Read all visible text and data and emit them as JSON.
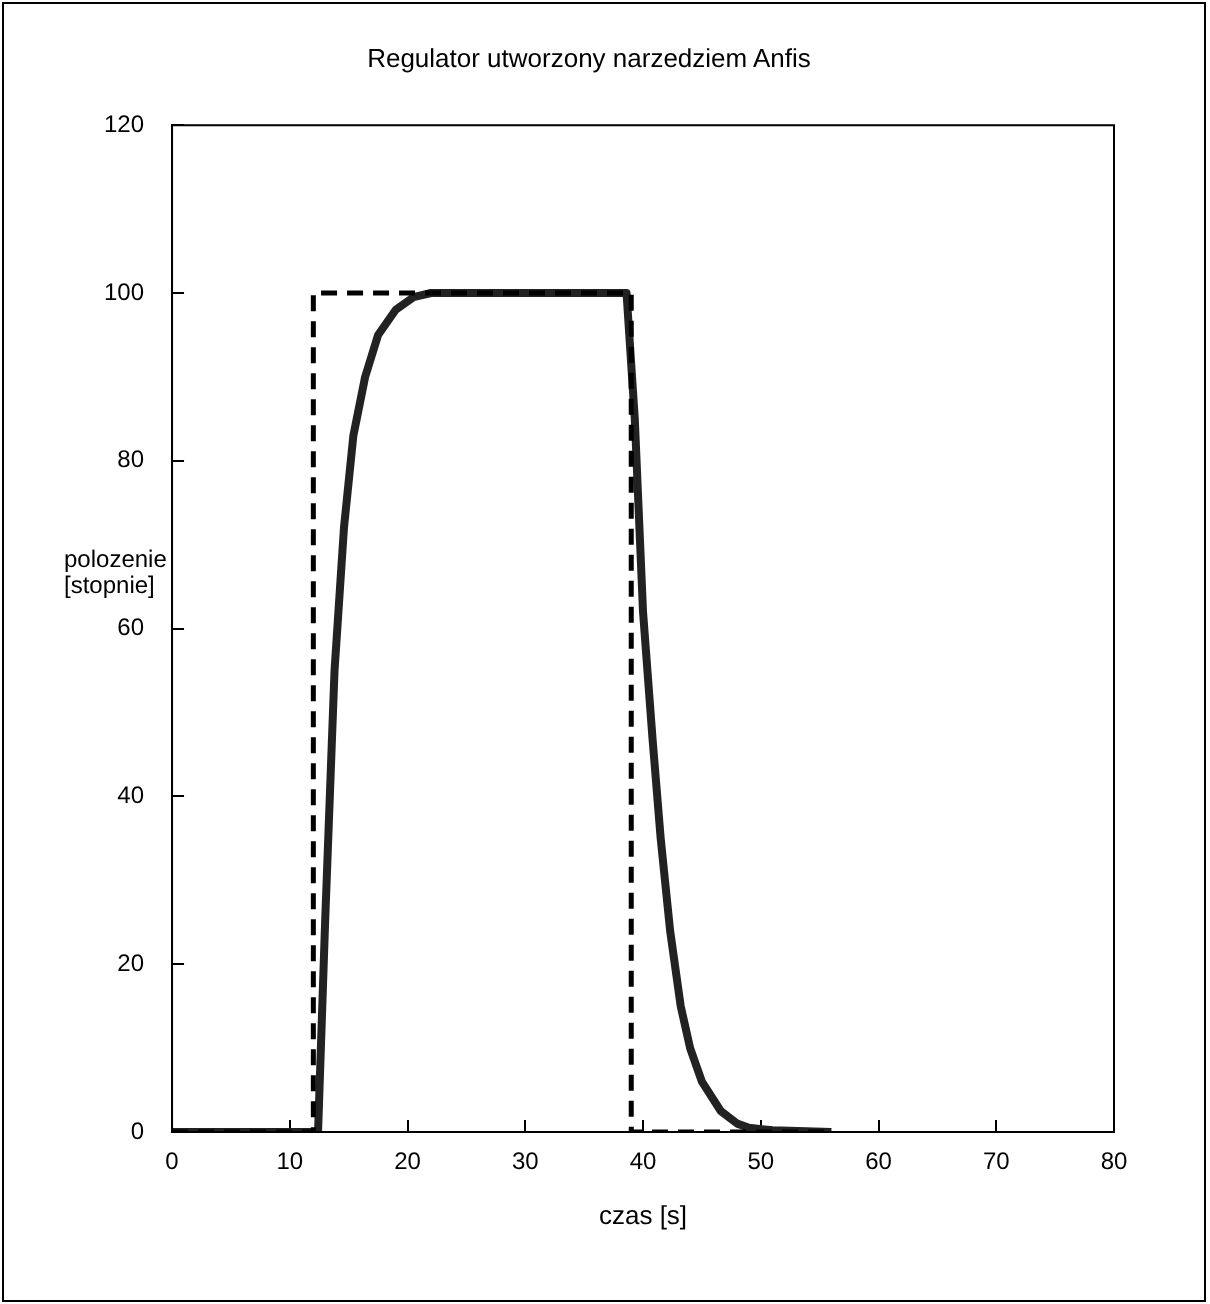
{
  "chart_data": {
    "type": "line",
    "title": "Regulator utworzony narzedziem Anfis",
    "xlabel": "czas [s]",
    "ylabel": "polozenie [stopnie]",
    "xlim": [
      0,
      80
    ],
    "xticks": [
      0,
      10,
      20,
      30,
      40,
      50,
      60,
      70,
      80
    ],
    "ylim": [
      0,
      120
    ],
    "yticks": [
      0,
      20,
      40,
      60,
      80,
      100,
      120
    ],
    "grid": false,
    "legend": false,
    "marker": "none",
    "series": [
      {
        "color": "#000000",
        "line_style": "dashed",
        "x": [
          0,
          12,
          12,
          39,
          39,
          56
        ],
        "values": [
          0,
          0,
          100,
          100,
          0,
          0
        ]
      },
      {
        "color": "#222222",
        "line_style": "solid",
        "x": [
          0,
          12.4,
          13,
          13.8,
          14.6,
          15.4,
          16.4,
          17.5,
          19,
          20.5,
          22,
          30,
          38.6,
          39.3,
          40,
          40.8,
          41.5,
          42.3,
          43.2,
          44,
          45,
          46.6,
          48,
          49,
          51,
          56
        ],
        "values": [
          0,
          0,
          25,
          55,
          72,
          83,
          90,
          95,
          98,
          99.5,
          100,
          100,
          100,
          85,
          62,
          47,
          35,
          24,
          15,
          10,
          6,
          2.5,
          1,
          0.5,
          0.2,
          0
        ]
      }
    ]
  }
}
